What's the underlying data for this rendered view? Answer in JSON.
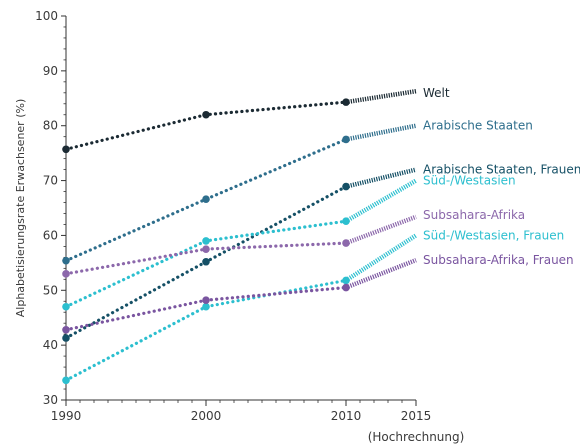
{
  "chart_data": {
    "type": "line",
    "xlabel": "",
    "ylabel": "Alphabetisierungsrate Erwachsener (%)",
    "xlim": [
      1990,
      2015
    ],
    "ylim": [
      30,
      100
    ],
    "xticks": [
      1990,
      2000,
      2010,
      2015
    ],
    "xtick_note": "(Hochrechnung)",
    "yticks": [
      30,
      40,
      50,
      60,
      70,
      80,
      90,
      100
    ],
    "grid": false,
    "legend": "inline-right",
    "series": [
      {
        "name": "Welt",
        "color": "#1b2a33",
        "x": [
          1990,
          2000,
          2010,
          2015
        ],
        "y": [
          75.7,
          82.0,
          84.3,
          86.3
        ]
      },
      {
        "name": "Arabische Staaten",
        "color": "#2e6e8c",
        "x": [
          1990,
          2000,
          2010,
          2015
        ],
        "y": [
          55.4,
          66.6,
          77.5,
          80.0
        ]
      },
      {
        "name": "Arabische Staaten, Frauen",
        "color": "#155066",
        "x": [
          1990,
          2000,
          2010,
          2015
        ],
        "y": [
          41.3,
          55.2,
          68.9,
          72.0
        ]
      },
      {
        "name": "Süd-/Westasien",
        "color": "#2cbfcf",
        "x": [
          1990,
          2000,
          2010,
          2015
        ],
        "y": [
          47.0,
          59.0,
          62.6,
          70.0
        ]
      },
      {
        "name": "Subsahara-Afrika",
        "color": "#8c68ab",
        "x": [
          1990,
          2000,
          2010,
          2015
        ],
        "y": [
          53.0,
          57.5,
          58.6,
          63.4
        ]
      },
      {
        "name": "Süd-/Westasien, Frauen",
        "color": "#2cbfcf",
        "x": [
          1990,
          2000,
          2010,
          2015
        ],
        "y": [
          33.6,
          47.0,
          51.8,
          60.0
        ]
      },
      {
        "name": "Subsahara-Afrika, Frauen",
        "color": "#7a55a0",
        "x": [
          1990,
          2000,
          2010,
          2015
        ],
        "y": [
          42.8,
          48.2,
          50.5,
          55.5
        ]
      }
    ]
  }
}
